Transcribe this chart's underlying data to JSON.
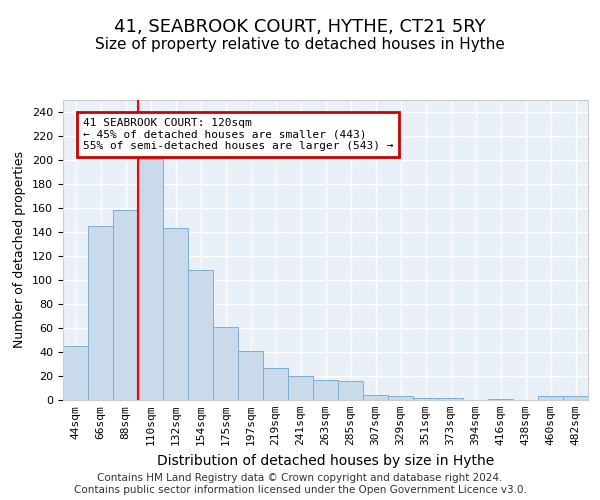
{
  "title": "41, SEABROOK COURT, HYTHE, CT21 5RY",
  "subtitle": "Size of property relative to detached houses in Hythe",
  "xlabel": "Distribution of detached houses by size in Hythe",
  "ylabel": "Number of detached properties",
  "bar_labels": [
    "44sqm",
    "66sqm",
    "88sqm",
    "110sqm",
    "132sqm",
    "154sqm",
    "175sqm",
    "197sqm",
    "219sqm",
    "241sqm",
    "263sqm",
    "285sqm",
    "307sqm",
    "329sqm",
    "351sqm",
    "373sqm",
    "394sqm",
    "416sqm",
    "438sqm",
    "460sqm",
    "482sqm"
  ],
  "bar_values": [
    45,
    145,
    158,
    201,
    143,
    108,
    61,
    41,
    27,
    20,
    17,
    16,
    4,
    3,
    2,
    2,
    0,
    1,
    0,
    3,
    3
  ],
  "bar_color": "#c9daea",
  "bar_edge_color": "#7bafd4",
  "background_color": "#eaf0f7",
  "grid_color": "#ffffff",
  "red_line_index": 3,
  "annotation_text": "41 SEABROOK COURT: 120sqm\n← 45% of detached houses are smaller (443)\n55% of semi-detached houses are larger (543) →",
  "annotation_box_edgecolor": "#cc0000",
  "ylim": [
    0,
    250
  ],
  "yticks": [
    0,
    20,
    40,
    60,
    80,
    100,
    120,
    140,
    160,
    180,
    200,
    220,
    240
  ],
  "footer_text": "Contains HM Land Registry data © Crown copyright and database right 2024.\nContains public sector information licensed under the Open Government Licence v3.0.",
  "title_fontsize": 13,
  "subtitle_fontsize": 11,
  "xlabel_fontsize": 10,
  "ylabel_fontsize": 9,
  "tick_fontsize": 8,
  "footer_fontsize": 7.5
}
